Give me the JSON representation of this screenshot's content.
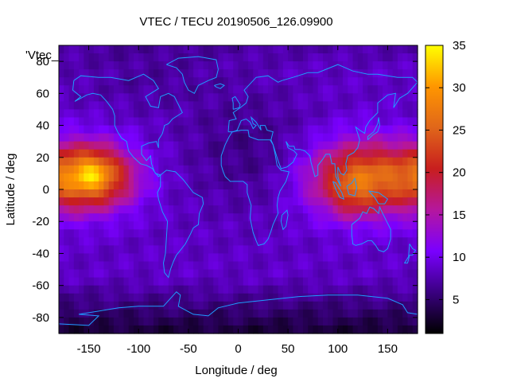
{
  "chart_data": {
    "type": "heatmap",
    "title": "VTEC / TECU 20190506_126.09900",
    "xlabel": "Longitude / deg",
    "ylabel": "Latitude / deg",
    "series_key": "'Vtec_",
    "xlim": [
      -180,
      180
    ],
    "ylim": [
      -90,
      90
    ],
    "x_ticks": [
      "-150",
      "-100",
      "-50",
      "0",
      "50",
      "100",
      "150"
    ],
    "x_tick_values": [
      -150,
      -100,
      -50,
      0,
      50,
      100,
      150
    ],
    "y_ticks": [
      "-80",
      "-60",
      "-40",
      "-20",
      "0",
      "20",
      "40",
      "60",
      "80"
    ],
    "y_tick_values": [
      -80,
      -60,
      -40,
      -20,
      0,
      20,
      40,
      60,
      80
    ],
    "colorbar": {
      "range": [
        1,
        35
      ],
      "ticks": [
        "5",
        "10",
        "15",
        "20",
        "25",
        "30",
        "35"
      ],
      "tick_values": [
        5,
        10,
        15,
        20,
        25,
        30,
        35
      ],
      "palette": [
        "#000000",
        "#3a0080",
        "#7a00ff",
        "#b5179e",
        "#c81e1e",
        "#e0661a",
        "#ff9600",
        "#ffff00"
      ]
    },
    "grid": false,
    "cell_size_deg": 5,
    "peaks": [
      {
        "lon": -147,
        "lat": 9,
        "vtec": 33
      },
      {
        "lon": 120,
        "lat": -3,
        "vtec": 28
      }
    ],
    "coastline_color": "#1f9cff"
  }
}
